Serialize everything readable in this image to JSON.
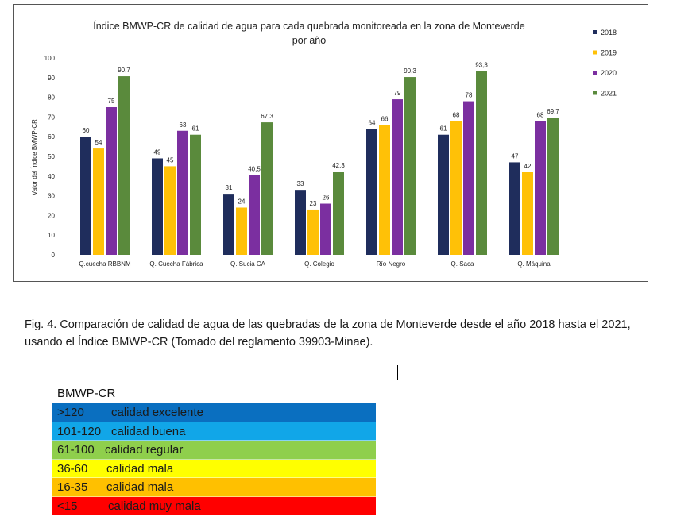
{
  "chart_data": {
    "type": "bar",
    "title_lines": [
      "Índice BMWP-CR de calidad de agua para cada quebrada monitoreada en la zona de Monteverde",
      "por año"
    ],
    "ylabel": "Valor del Índice BMWP-CR",
    "xlabel": "",
    "ylim": [
      0,
      100
    ],
    "yticks": [
      0,
      10,
      20,
      30,
      40,
      50,
      60,
      70,
      80,
      90,
      100
    ],
    "legend_position": "right",
    "categories": [
      "Q.cuecha RBBNM",
      "Q. Cuecha Fábrica",
      "Q. Sucia CA",
      "Q. Colegio",
      "Río Negro",
      "Q. Saca",
      "Q. Máquina"
    ],
    "series": [
      {
        "name": "2018",
        "color": "#1f2d5c",
        "values": [
          60,
          49,
          31,
          33,
          64,
          61,
          47
        ],
        "labels": [
          "60",
          "49",
          "31",
          "33",
          "64",
          "61",
          "47"
        ]
      },
      {
        "name": "2019",
        "color": "#ffc107",
        "values": [
          54,
          45,
          24,
          23,
          66,
          68,
          42
        ],
        "labels": [
          "54",
          "45",
          "24",
          "23",
          "66",
          "68",
          "42"
        ]
      },
      {
        "name": "2020",
        "color": "#7b2fa0",
        "values": [
          75,
          63,
          40.5,
          26,
          79,
          78,
          68
        ],
        "labels": [
          "75",
          "63",
          "40,5",
          "26",
          "79",
          "78",
          "68"
        ]
      },
      {
        "name": "2021",
        "color": "#5a8a3c",
        "values": [
          90.7,
          61,
          67.3,
          42.3,
          90.3,
          93.3,
          69.7
        ],
        "labels": [
          "90,7",
          "61",
          "67,3",
          "42,3",
          "90,3",
          "93,3",
          "69,7"
        ]
      }
    ]
  },
  "caption": "Fig. 4. Comparación de calidad de agua de las quebradas de la zona de Monteverde desde el año 2018 hasta el 2021, usando el Índice BMWP-CR (Tomado del reglamento 39903-Minae).",
  "bmwp_legend": {
    "title": "BMWP-CR",
    "rows": [
      {
        "range": ">120",
        "description": "calidad excelente",
        "color": "#0a6fc0"
      },
      {
        "range": "101-120",
        "description": "calidad buena",
        "color": "#11a6e8"
      },
      {
        "range": "61-100",
        "description": "calidad regular",
        "color": "#8fcf4c"
      },
      {
        "range": "36-60",
        "description": "calidad mala",
        "color": "#ffff00"
      },
      {
        "range": "16-35",
        "description": "calidad mala",
        "color": "#ffc000"
      },
      {
        "range": "<15",
        "description": "calidad muy mala",
        "color": "#ff0000"
      }
    ]
  }
}
